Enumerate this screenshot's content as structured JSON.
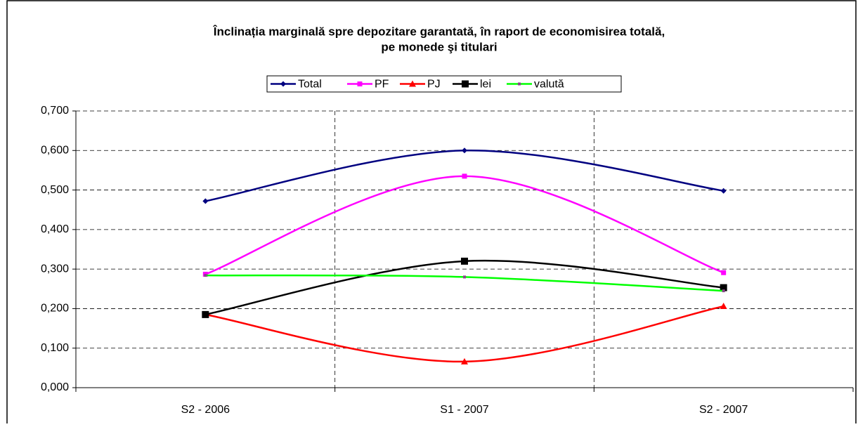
{
  "chart_data": {
    "type": "line",
    "title": [
      "Înclinația marginală spre depozitare garantată, în raport de economisirea totală,",
      "pe monede şi titulari"
    ],
    "categories": [
      "S2 - 2006",
      "S1 - 2007",
      "S2 - 2007"
    ],
    "series": [
      {
        "name": "Total",
        "color": "#000080",
        "marker": "diamond",
        "values": [
          0.472,
          0.6,
          0.498
        ]
      },
      {
        "name": "PF",
        "color": "#ff00ff",
        "marker": "square",
        "values": [
          0.287,
          0.535,
          0.291
        ]
      },
      {
        "name": "PJ",
        "color": "#ff0000",
        "marker": "triangle",
        "values": [
          0.185,
          0.066,
          0.206
        ]
      },
      {
        "name": "lei",
        "color": "#000000",
        "marker": "bigsquare",
        "values": [
          0.185,
          0.32,
          0.253
        ]
      },
      {
        "name": "valută",
        "color": "#00ff00",
        "marker": "dash",
        "values": [
          0.284,
          0.28,
          0.245
        ]
      }
    ],
    "ylim": [
      0,
      0.7
    ],
    "yticks": [
      {
        "value": 0,
        "label": "0,000"
      },
      {
        "value": 0.1,
        "label": "0,100"
      },
      {
        "value": 0.2,
        "label": "0,200"
      },
      {
        "value": 0.3,
        "label": "0,300"
      },
      {
        "value": 0.4,
        "label": "0,400"
      },
      {
        "value": 0.5,
        "label": "0,500"
      },
      {
        "value": 0.6,
        "label": "0,600"
      },
      {
        "value": 0.7,
        "label": "0,700"
      }
    ],
    "grid": true,
    "smooth": true,
    "legend": "top"
  }
}
